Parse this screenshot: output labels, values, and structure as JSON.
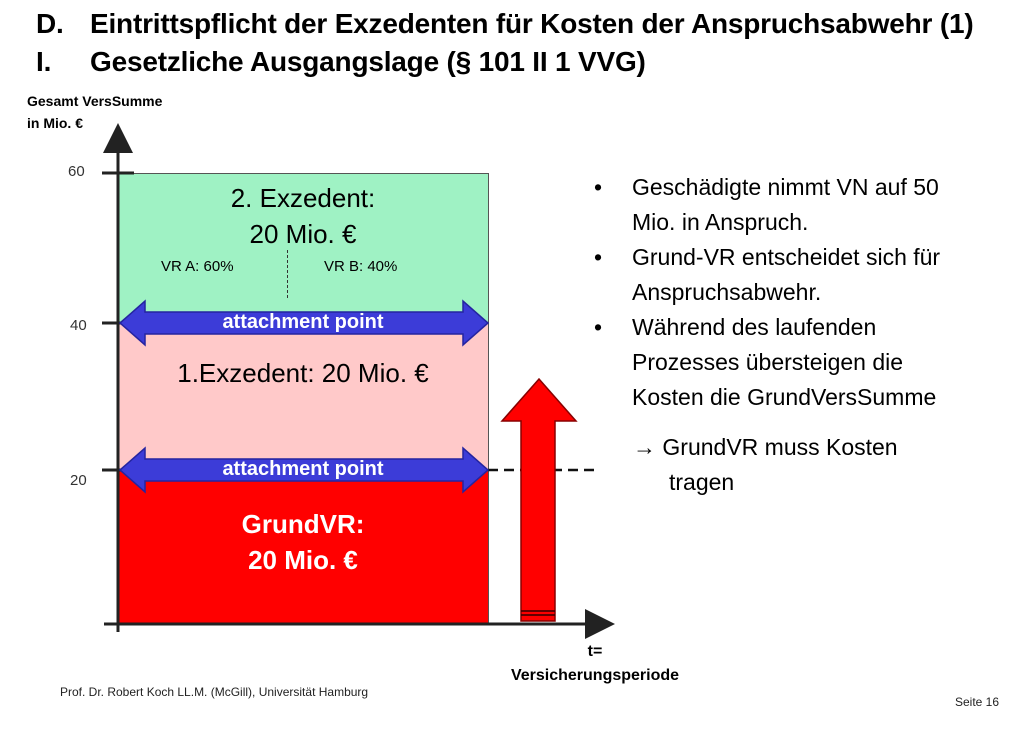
{
  "title": {
    "line1_num": "D.",
    "line1_text": "Eintrittspflicht der Exzedenten für Kosten der Anspruchsabwehr (1)",
    "line2_num": "I.",
    "line2_text": "Gesetzliche Ausgangslage (§ 101 II 1 VVG)"
  },
  "axis": {
    "y_label_line1": "Gesamt VersSumme",
    "y_label_line2": "in Mio. €",
    "ticks": [
      "60",
      "40",
      "20"
    ],
    "x_label_line1": "t=",
    "x_label_line2": "Versicherungsperiode"
  },
  "layers": {
    "exzedent2_line1": "2. Exzedent:",
    "exzedent2_line2": "20 Mio. €",
    "vr_a": "VR A: 60%",
    "vr_b": "VR B: 40%",
    "exzedent1": "1.Exzedent: 20 Mio. €",
    "grund_line1": "GrundVR:",
    "grund_line2": "20 Mio. €",
    "attachment_point_label": "attachment point"
  },
  "colors": {
    "exzedent2": "#9ff2c4",
    "exzedent1": "#ffc9c9",
    "grund": "#ff0000",
    "attachment_arrow": "#3c3cd8"
  },
  "bullets": [
    {
      "line1": "Geschädigte nimmt VN auf 50",
      "line2": "Mio. in Anspruch."
    },
    {
      "line1": "Grund-VR entscheidet sich für",
      "line2": "Anspruchsabwehr."
    },
    {
      "line1": "Während des laufenden",
      "line2": "Prozesses übersteigen die",
      "line3": "Kosten die GrundVersSumme"
    }
  ],
  "bullet_symbol": "•",
  "conclusion": {
    "line1": "→ GrundVR muss Kosten",
    "line2": "tragen"
  },
  "footer": {
    "author": "Prof. Dr. Robert Koch LL.M. (McGill), Universität Hamburg",
    "page": "Seite 16"
  }
}
